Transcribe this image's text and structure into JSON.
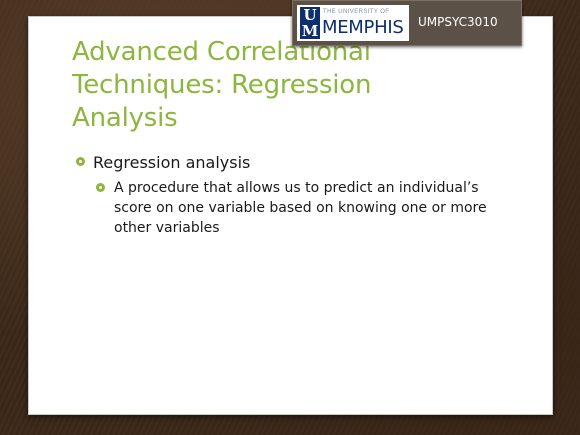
{
  "slide": {
    "title": "Advanced Correlational Techniques: Regression Analysis",
    "badge": {
      "logo_small": "THE UNIVERSITY OF",
      "logo_mark": "U M",
      "logo_big": "MEMPHIS",
      "course_code": "UMPSYC3010"
    },
    "bullets": [
      {
        "text": "Regression analysis",
        "sub": [
          {
            "text": "A procedure that allows us to predict an individual’s score on one variable based on knowing one or more other variables"
          }
        ]
      }
    ]
  },
  "colors": {
    "accent_green": "#8db63f",
    "badge_bg": "#5c5147",
    "memphis_blue": "#0c2f6e",
    "background_wood": "#3b2819"
  },
  "icons": {
    "bullet": "green-circle-bullet-icon",
    "logo": "um-logo-icon"
  }
}
